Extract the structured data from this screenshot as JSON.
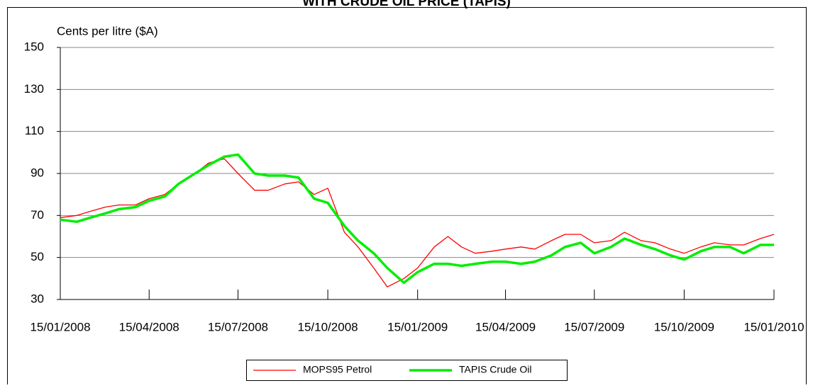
{
  "chart_data": {
    "type": "line",
    "title": "WITH CRUDE OIL PRICE (TAPIS)",
    "y_label": "Cents per litre ($A)",
    "x": [
      "15/01/2008",
      "01/02/2008",
      "15/02/2008",
      "01/03/2008",
      "15/03/2008",
      "01/04/2008",
      "15/04/2008",
      "01/05/2008",
      "15/05/2008",
      "01/06/2008",
      "15/06/2008",
      "01/07/2008",
      "15/07/2008",
      "01/08/2008",
      "15/08/2008",
      "01/09/2008",
      "15/09/2008",
      "01/10/2008",
      "15/10/2008",
      "01/11/2008",
      "15/11/2008",
      "01/12/2008",
      "15/12/2008",
      "01/01/2009",
      "15/01/2009",
      "01/02/2009",
      "15/02/2009",
      "01/03/2009",
      "15/03/2009",
      "01/04/2009",
      "15/04/2009",
      "01/05/2009",
      "15/05/2009",
      "01/06/2009",
      "15/06/2009",
      "01/07/2009",
      "15/07/2009",
      "01/08/2009",
      "15/08/2009",
      "01/09/2009",
      "15/09/2009",
      "01/10/2009",
      "15/10/2009",
      "01/11/2009",
      "15/11/2009",
      "01/12/2009",
      "15/12/2009",
      "01/01/2010",
      "15/01/2010"
    ],
    "series": [
      {
        "name": "MOPS95 Petrol",
        "color": "#ff0000",
        "width": 1.3,
        "values": [
          69,
          70,
          72,
          74,
          75,
          75,
          78,
          80,
          85,
          90,
          95,
          97,
          90,
          82,
          82,
          85,
          86,
          80,
          83,
          62,
          55,
          45,
          36,
          40,
          45,
          55,
          60,
          55,
          52,
          53,
          54,
          55,
          54,
          58,
          61,
          61,
          57,
          58,
          62,
          58,
          57,
          54,
          52,
          55,
          57,
          56,
          56,
          59,
          61
        ]
      },
      {
        "name": "TAPIS Crude Oil",
        "color": "#00ee00",
        "width": 3.5,
        "values": [
          68,
          67,
          69,
          71,
          73,
          74,
          77,
          79,
          85,
          90,
          94,
          98,
          99,
          90,
          89,
          89,
          88,
          78,
          76,
          65,
          58,
          52,
          45,
          38,
          43,
          47,
          47,
          46,
          47,
          48,
          48,
          47,
          48,
          51,
          55,
          57,
          52,
          55,
          59,
          56,
          54,
          51,
          49,
          53,
          55,
          55,
          52,
          56,
          56
        ]
      }
    ],
    "xlim": [
      "15/01/2008",
      "15/01/2010"
    ],
    "xticks": [
      "15/01/2008",
      "15/04/2008",
      "15/07/2008",
      "15/10/2008",
      "15/01/2009",
      "15/04/2009",
      "15/07/2009",
      "15/10/2009",
      "15/01/2010"
    ],
    "ylim": [
      30,
      150
    ],
    "yticks": [
      30,
      50,
      70,
      90,
      110,
      130,
      150
    ],
    "grid": true,
    "legend": "bottom"
  }
}
